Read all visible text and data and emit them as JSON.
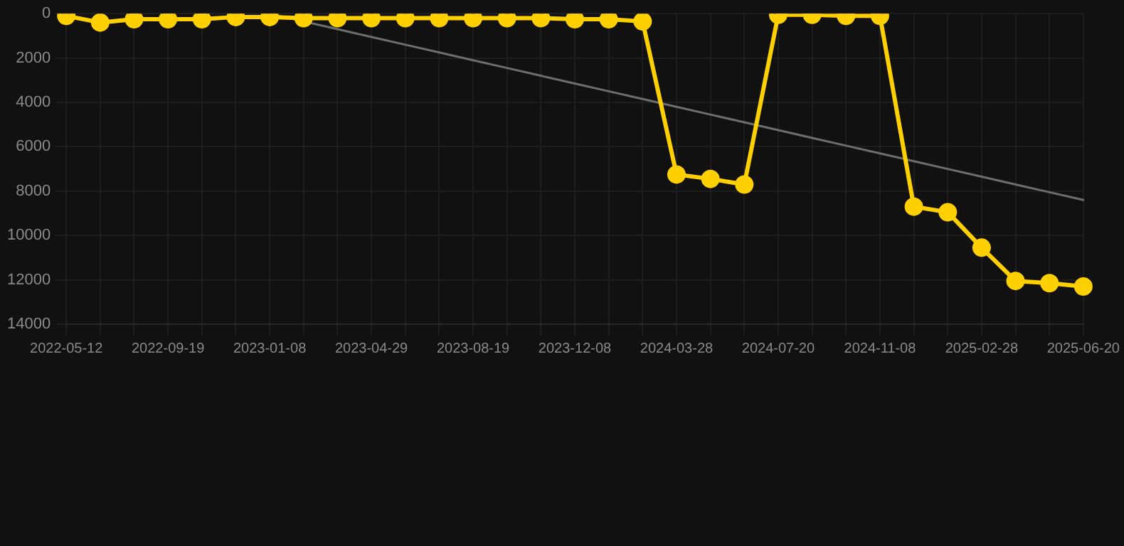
{
  "chart_data": {
    "type": "line",
    "categories": [
      "2022-05-12",
      null,
      null,
      "2022-09-19",
      null,
      null,
      "2023-01-08",
      null,
      null,
      "2023-04-29",
      null,
      null,
      "2023-08-19",
      null,
      null,
      "2023-12-08",
      null,
      null,
      "2024-03-28",
      null,
      null,
      "2024-07-20",
      null,
      null,
      "2024-11-08",
      null,
      null,
      "2025-02-28",
      null,
      null,
      "2025-06-20"
    ],
    "series": [
      {
        "color": "#ffd000",
        "marker": "circle",
        "values": [
          100,
          400,
          250,
          250,
          250,
          150,
          150,
          200,
          200,
          200,
          200,
          200,
          200,
          200,
          200,
          250,
          250,
          350,
          7250,
          7450,
          7700,
          50,
          50,
          100,
          100,
          8700,
          8950,
          10550,
          12050,
          12150,
          12300
        ]
      },
      {
        "color": "#6e6e6e",
        "marker": "none",
        "values": [
          null,
          null,
          null,
          null,
          null,
          null,
          0,
          null,
          700,
          1050,
          1400,
          1750,
          2100,
          2450,
          2800,
          3150,
          3500,
          3850,
          4200,
          4550,
          4900,
          5250,
          5600,
          5950,
          6300,
          6650,
          7000,
          7350,
          7700,
          8050,
          8400
        ]
      }
    ],
    "ylim": [
      14000,
      0
    ],
    "yticks": [
      0,
      2000,
      4000,
      6000,
      8000,
      10000,
      12000,
      14000
    ],
    "grid": true,
    "legend": false,
    "line_style": "solid"
  }
}
